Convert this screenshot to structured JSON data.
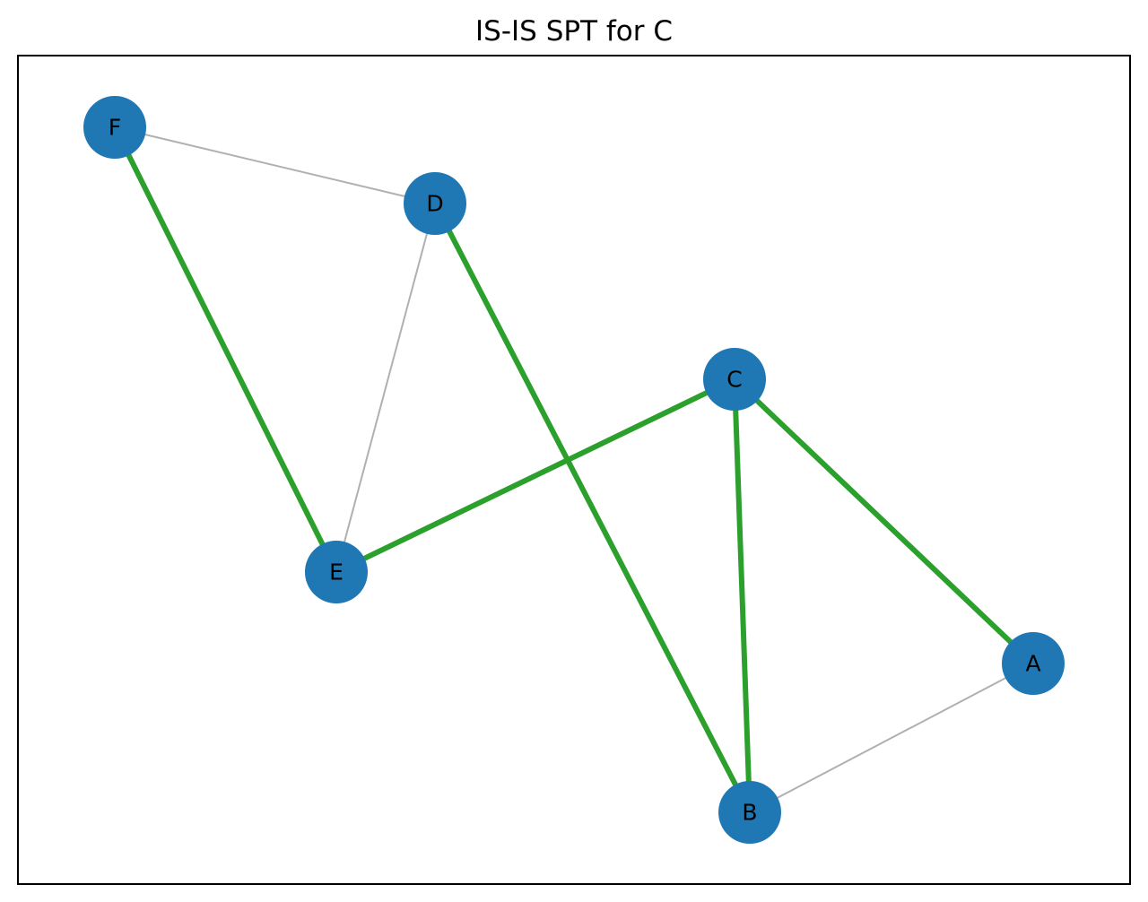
{
  "title": "IS-IS SPT for C",
  "colors": {
    "node_fill": "#1f77b4",
    "spt_edge": "#2ca02c",
    "other_edge": "#b0b0b0",
    "frame": "#000000",
    "label": "#000000"
  },
  "nodes": [
    {
      "id": "F",
      "label": "F"
    },
    {
      "id": "D",
      "label": "D"
    },
    {
      "id": "C",
      "label": "C"
    },
    {
      "id": "E",
      "label": "E"
    },
    {
      "id": "A",
      "label": "A"
    },
    {
      "id": "B",
      "label": "B"
    }
  ],
  "edges": [
    {
      "source": "F",
      "target": "D",
      "in_spt": false
    },
    {
      "source": "D",
      "target": "E",
      "in_spt": false
    },
    {
      "source": "A",
      "target": "B",
      "in_spt": false
    },
    {
      "source": "F",
      "target": "E",
      "in_spt": true
    },
    {
      "source": "D",
      "target": "B",
      "in_spt": true
    },
    {
      "source": "C",
      "target": "E",
      "in_spt": true
    },
    {
      "source": "C",
      "target": "B",
      "in_spt": true
    },
    {
      "source": "C",
      "target": "A",
      "in_spt": true
    }
  ]
}
